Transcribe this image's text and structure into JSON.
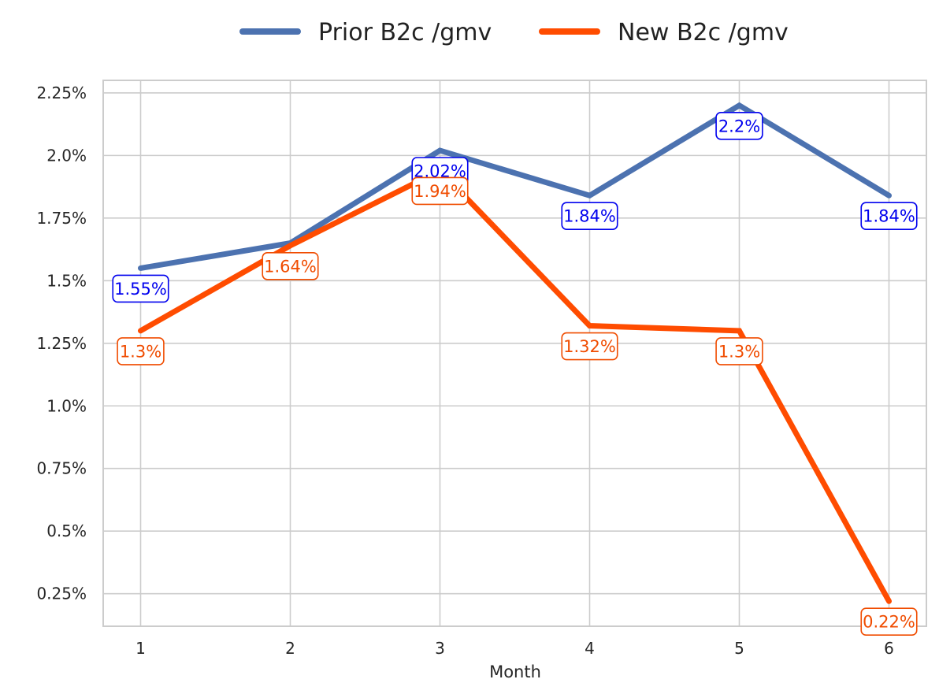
{
  "chart_data": {
    "type": "line",
    "title": "",
    "xlabel": "Month",
    "ylabel": "",
    "x": [
      1,
      2,
      3,
      4,
      5,
      6
    ],
    "x_tick_labels": [
      "1",
      "2",
      "3",
      "4",
      "5",
      "6"
    ],
    "y_ticks": [
      0.25,
      0.5,
      0.75,
      1.0,
      1.25,
      1.5,
      1.75,
      2.0,
      2.25
    ],
    "y_tick_labels": [
      "0.25%",
      "0.5%",
      "0.75%",
      "1.0%",
      "1.25%",
      "1.5%",
      "1.75%",
      "2.0%",
      "2.25%"
    ],
    "ylim": [
      0.12,
      2.3
    ],
    "xlim": [
      0.75,
      6.25
    ],
    "grid": true,
    "legend_position": "top-center",
    "series": [
      {
        "name": "Prior B2c /gmv",
        "color": "#4c72b0",
        "label_color": "#0000ee",
        "values": [
          1.55,
          1.65,
          2.02,
          1.84,
          2.2,
          1.84
        ],
        "labels": [
          "1.55%",
          "",
          "2.02%",
          "1.84%",
          "2.2%",
          "1.84%"
        ]
      },
      {
        "name": "New B2c /gmv",
        "color": "#ff4c00",
        "label_color": "#f04c00",
        "values": [
          1.3,
          1.64,
          1.94,
          1.32,
          1.3,
          0.22
        ],
        "labels": [
          "1.3%",
          "1.64%",
          "1.94%",
          "1.32%",
          "1.3%",
          "0.22%"
        ]
      }
    ]
  }
}
